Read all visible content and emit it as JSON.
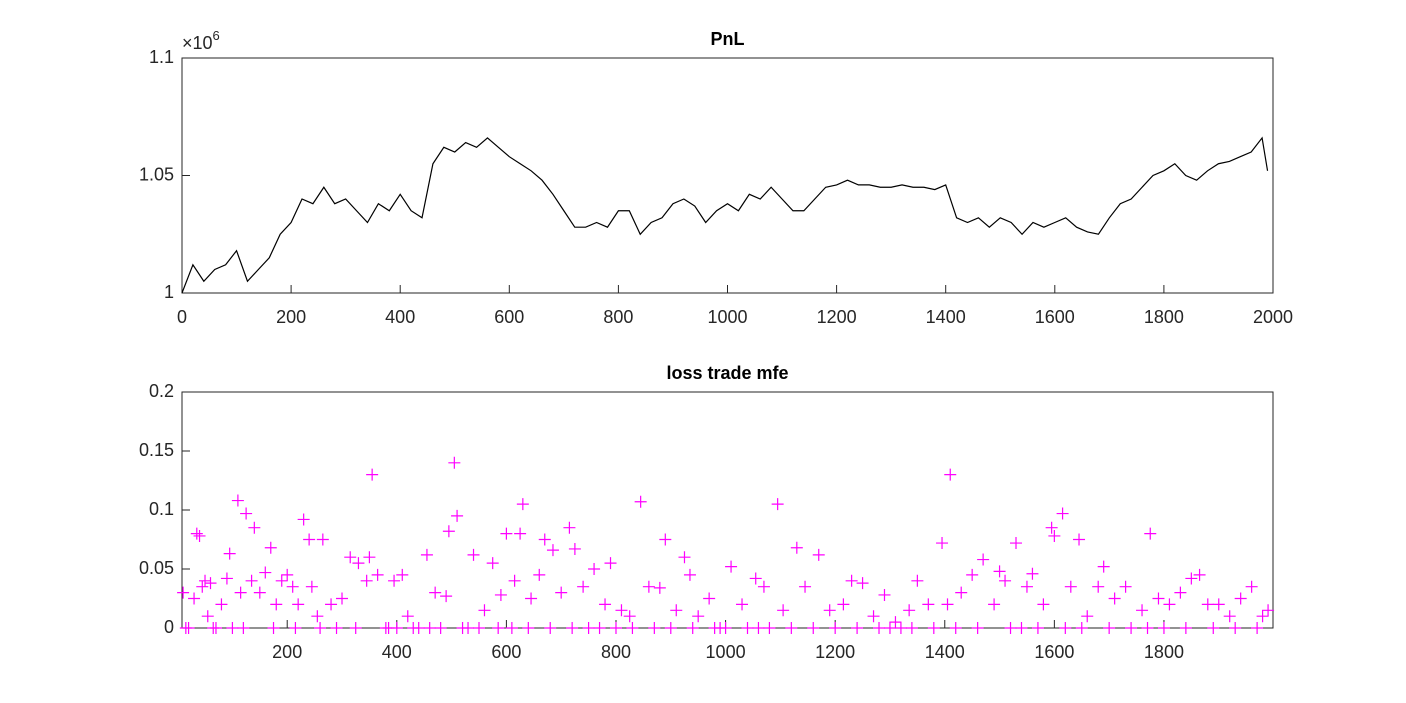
{
  "chart_data": [
    {
      "type": "line",
      "title": "PnL",
      "color": "#000000",
      "y_exponent_base": "×10",
      "y_exponent": "6",
      "xlim": [
        0,
        2000
      ],
      "xticks": [
        0,
        200,
        400,
        600,
        800,
        1000,
        1200,
        1400,
        1600,
        1800,
        2000
      ],
      "ylim": [
        1000000,
        1100000
      ],
      "yticks": [
        {
          "value": 1000000,
          "label": "1"
        },
        {
          "value": 1050000,
          "label": "1.05"
        },
        {
          "value": 1100000,
          "label": "1.1"
        }
      ],
      "x": [
        0,
        20,
        40,
        60,
        80,
        100,
        120,
        140,
        160,
        180,
        200,
        220,
        240,
        260,
        280,
        300,
        320,
        340,
        360,
        380,
        400,
        420,
        440,
        460,
        480,
        500,
        520,
        540,
        560,
        580,
        600,
        620,
        640,
        660,
        680,
        700,
        720,
        740,
        760,
        780,
        800,
        820,
        840,
        860,
        880,
        900,
        920,
        940,
        960,
        980,
        1000,
        1020,
        1040,
        1060,
        1080,
        1100,
        1120,
        1140,
        1160,
        1180,
        1200,
        1220,
        1240,
        1260,
        1280,
        1300,
        1320,
        1340,
        1360,
        1380,
        1400,
        1420,
        1440,
        1460,
        1480,
        1500,
        1520,
        1540,
        1560,
        1580,
        1600,
        1620,
        1640,
        1660,
        1680,
        1700,
        1720,
        1740,
        1760,
        1780,
        1800,
        1820,
        1840,
        1860,
        1880,
        1900,
        1920,
        1940,
        1960,
        1980,
        1990
      ],
      "values": [
        1000000,
        1012000,
        1005000,
        1010000,
        1012000,
        1018000,
        1005000,
        1010000,
        1015000,
        1025000,
        1030000,
        1040000,
        1038000,
        1045000,
        1038000,
        1040000,
        1035000,
        1030000,
        1038000,
        1035000,
        1042000,
        1035000,
        1032000,
        1055000,
        1062000,
        1060000,
        1064000,
        1062000,
        1066000,
        1062000,
        1058000,
        1055000,
        1052000,
        1048000,
        1042000,
        1035000,
        1028000,
        1028000,
        1030000,
        1028000,
        1035000,
        1035000,
        1025000,
        1030000,
        1032000,
        1038000,
        1040000,
        1037000,
        1030000,
        1035000,
        1038000,
        1035000,
        1042000,
        1040000,
        1045000,
        1040000,
        1035000,
        1035000,
        1040000,
        1045000,
        1046000,
        1048000,
        1046000,
        1046000,
        1045000,
        1045000,
        1046000,
        1045000,
        1045000,
        1044000,
        1046000,
        1032000,
        1030000,
        1032000,
        1028000,
        1032000,
        1030000,
        1025000,
        1030000,
        1028000,
        1030000,
        1032000,
        1028000,
        1026000,
        1025000,
        1032000,
        1038000,
        1040000,
        1045000,
        1050000,
        1052000,
        1055000,
        1050000,
        1048000,
        1052000,
        1055000,
        1056000,
        1058000,
        1060000,
        1066000,
        1052000
      ]
    },
    {
      "type": "scatter",
      "title": "loss trade mfe",
      "color": "#ff00ff",
      "xlim": [
        8,
        1999
      ],
      "xticks": [
        200,
        400,
        600,
        800,
        1000,
        1200,
        1400,
        1600,
        1800
      ],
      "ylim": [
        0,
        0.2
      ],
      "yticks": [
        0,
        0.05,
        0.1,
        0.15,
        0.2
      ],
      "x": [
        10,
        20,
        30,
        35,
        40,
        45,
        50,
        55,
        60,
        70,
        80,
        90,
        95,
        100,
        110,
        115,
        125,
        135,
        140,
        150,
        160,
        170,
        180,
        190,
        200,
        210,
        220,
        230,
        240,
        245,
        255,
        265,
        280,
        300,
        315,
        330,
        345,
        350,
        355,
        365,
        380,
        395,
        410,
        420,
        440,
        455,
        470,
        490,
        495,
        505,
        510,
        520,
        540,
        560,
        575,
        590,
        600,
        615,
        625,
        630,
        645,
        660,
        670,
        685,
        700,
        715,
        725,
        740,
        760,
        780,
        790,
        810,
        825,
        845,
        860,
        880,
        890,
        910,
        925,
        935,
        950,
        970,
        990,
        1010,
        1030,
        1055,
        1070,
        1095,
        1105,
        1130,
        1145,
        1170,
        1190,
        1215,
        1230,
        1250,
        1270,
        1290,
        1310,
        1335,
        1350,
        1370,
        1395,
        1405,
        1410,
        1430,
        1450,
        1470,
        1490,
        1500,
        1510,
        1530,
        1550,
        1560,
        1580,
        1595,
        1600,
        1615,
        1630,
        1645,
        1660,
        1680,
        1690,
        1710,
        1730,
        1760,
        1775,
        1790,
        1810,
        1830,
        1850,
        1865,
        1880,
        1900,
        1920,
        1940,
        1960,
        1980,
        1990,
        15,
        65,
        120,
        175,
        215,
        260,
        290,
        325,
        385,
        400,
        430,
        460,
        480,
        530,
        550,
        585,
        610,
        640,
        680,
        720,
        750,
        770,
        800,
        830,
        870,
        900,
        940,
        980,
        1000,
        1040,
        1060,
        1080,
        1120,
        1160,
        1200,
        1240,
        1280,
        1300,
        1320,
        1340,
        1380,
        1420,
        1460,
        1520,
        1540,
        1570,
        1620,
        1650,
        1700,
        1740,
        1770,
        1800,
        1840,
        1890,
        1930,
        1970
      ],
      "values": [
        0.03,
        0,
        0.025,
        0.08,
        0.078,
        0.035,
        0.04,
        0.01,
        0.038,
        0,
        0.02,
        0.042,
        0.063,
        0,
        0.108,
        0.03,
        0.097,
        0.04,
        0.085,
        0.03,
        0.047,
        0.068,
        0.02,
        0.04,
        0.045,
        0.035,
        0.02,
        0.092,
        0.075,
        0.035,
        0.01,
        0.075,
        0.02,
        0.025,
        0.06,
        0.055,
        0.04,
        0.06,
        0.13,
        0.045,
        0,
        0.04,
        0.045,
        0.01,
        0,
        0.062,
        0.03,
        0.027,
        0.082,
        0.14,
        0.095,
        0,
        0.062,
        0.015,
        0.055,
        0.028,
        0.08,
        0.04,
        0.08,
        0.105,
        0.025,
        0.045,
        0.075,
        0.066,
        0.03,
        0.085,
        0.067,
        0.035,
        0.05,
        0.02,
        0.055,
        0.015,
        0.01,
        0.107,
        0.035,
        0.034,
        0.075,
        0.015,
        0.06,
        0.045,
        0.01,
        0.025,
        0,
        0.052,
        0.02,
        0.042,
        0.035,
        0.105,
        0.015,
        0.068,
        0.035,
        0.062,
        0.015,
        0.02,
        0.04,
        0.038,
        0.01,
        0.028,
        0.005,
        0.015,
        0.04,
        0.02,
        0.072,
        0.02,
        0.13,
        0.03,
        0.045,
        0.058,
        0.02,
        0.048,
        0.04,
        0.072,
        0.035,
        0.046,
        0.02,
        0.085,
        0.078,
        0.097,
        0.035,
        0.075,
        0.01,
        0.035,
        0.052,
        0.025,
        0.035,
        0.015,
        0.08,
        0.025,
        0.02,
        0.03,
        0.042,
        0.045,
        0.02,
        0.02,
        0.01,
        0.025,
        0.035,
        0.01,
        0.015,
        0,
        0,
        0,
        0,
        0,
        0,
        0,
        0,
        0,
        0,
        0,
        0,
        0,
        0,
        0,
        0,
        0,
        0,
        0,
        0,
        0,
        0,
        0,
        0,
        0,
        0,
        0,
        0,
        0,
        0,
        0,
        0,
        0,
        0,
        0,
        0,
        0,
        0,
        0,
        0,
        0,
        0,
        0,
        0,
        0,
        0,
        0,
        0,
        0,
        0,
        0,
        0,
        0,
        0,
        0,
        0
      ]
    }
  ]
}
